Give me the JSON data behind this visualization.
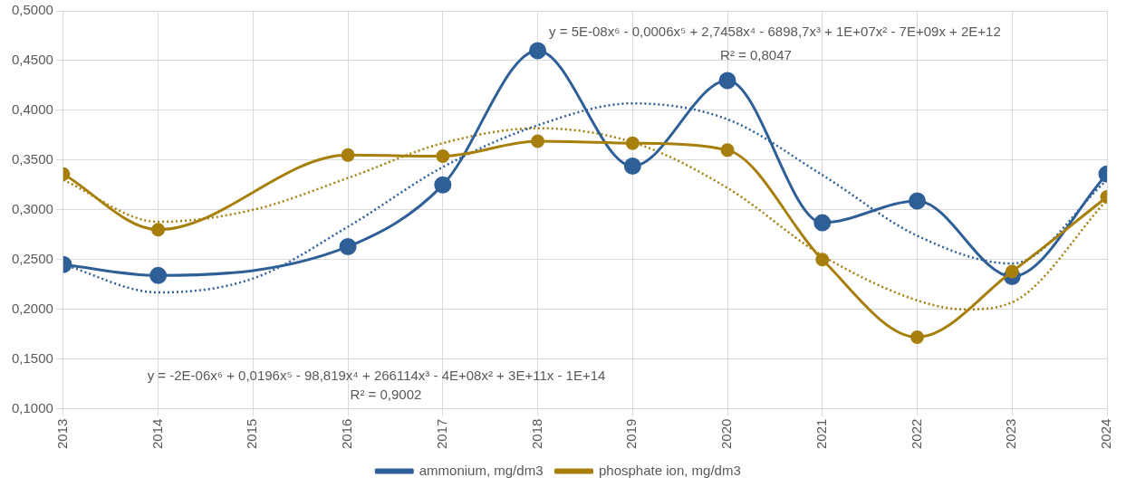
{
  "chart_data": {
    "type": "line",
    "x": [
      2013,
      2014,
      2016,
      2017,
      2018,
      2019,
      2020,
      2021,
      2022,
      2023,
      2024
    ],
    "series": [
      {
        "name": "ammonium, mg/dm3",
        "color": "#2e5f97",
        "marker": "circle",
        "values": [
          0.245,
          0.234,
          0.263,
          0.325,
          0.46,
          0.344,
          0.43,
          0.287,
          0.309,
          0.233,
          0.336
        ]
      },
      {
        "name": "phosphate ion, mg/dm3",
        "color": "#a67f0d",
        "marker": "circle",
        "values": [
          0.336,
          0.28,
          0.355,
          0.354,
          0.369,
          0.367,
          0.36,
          0.25,
          0.172,
          0.238,
          0.313
        ]
      },
      {
        "type": "line",
        "color": "#2e5f97",
        "marker": "none",
        "line_style": "dotted",
        "x": [
          2013,
          2014,
          2015,
          2016,
          2017,
          2018,
          2019,
          2020,
          2021,
          2022,
          2023,
          2024
        ],
        "values": [
          0.245,
          0.217,
          0.231,
          0.283,
          0.343,
          0.385,
          0.407,
          0.391,
          0.335,
          0.274,
          0.246,
          0.33
        ]
      },
      {
        "type": "line",
        "color": "#a67f0d",
        "marker": "none",
        "line_style": "dotted",
        "x": [
          2013,
          2014,
          2015,
          2016,
          2017,
          2018,
          2019,
          2020,
          2021,
          2022,
          2022.5,
          2023,
          2024
        ],
        "values": [
          0.33,
          0.288,
          0.3,
          0.332,
          0.367,
          0.382,
          0.368,
          0.322,
          0.254,
          0.209,
          0.2,
          0.207,
          0.31
        ]
      }
    ],
    "xlim": [
      2013,
      2024
    ],
    "xticks": [
      2013,
      2014,
      2015,
      2016,
      2017,
      2018,
      2019,
      2020,
      2021,
      2022,
      2023,
      2024
    ],
    "ylim": [
      0.1,
      0.5
    ],
    "yticks": [
      {
        "value": 0.1,
        "label": "0,1000"
      },
      {
        "value": 0.15,
        "label": "0,1500"
      },
      {
        "value": 0.2,
        "label": "0,2000"
      },
      {
        "value": 0.25,
        "label": "0,2500"
      },
      {
        "value": 0.3,
        "label": "0,3000"
      },
      {
        "value": 0.35,
        "label": "0,3500"
      },
      {
        "value": 0.4,
        "label": "0,4000"
      },
      {
        "value": 0.45,
        "label": "0,4500"
      },
      {
        "value": 0.5,
        "label": "0,5000"
      }
    ],
    "grid": true,
    "legend": "bottom",
    "annotations": [
      "y = 5E-08x⁶ - 0,0006x⁵ + 2,7458x⁴ - 6898,7x³ + 1E+07x² - 7E+09x + 2E+12",
      "R² = 0,8047",
      "y = -2E-06x⁶ + 0,0196x⁵ - 98,819x⁴ + 266114x³ - 4E+08x² + 3E+11x - 1E+14",
      "R² = 0,9002"
    ]
  }
}
